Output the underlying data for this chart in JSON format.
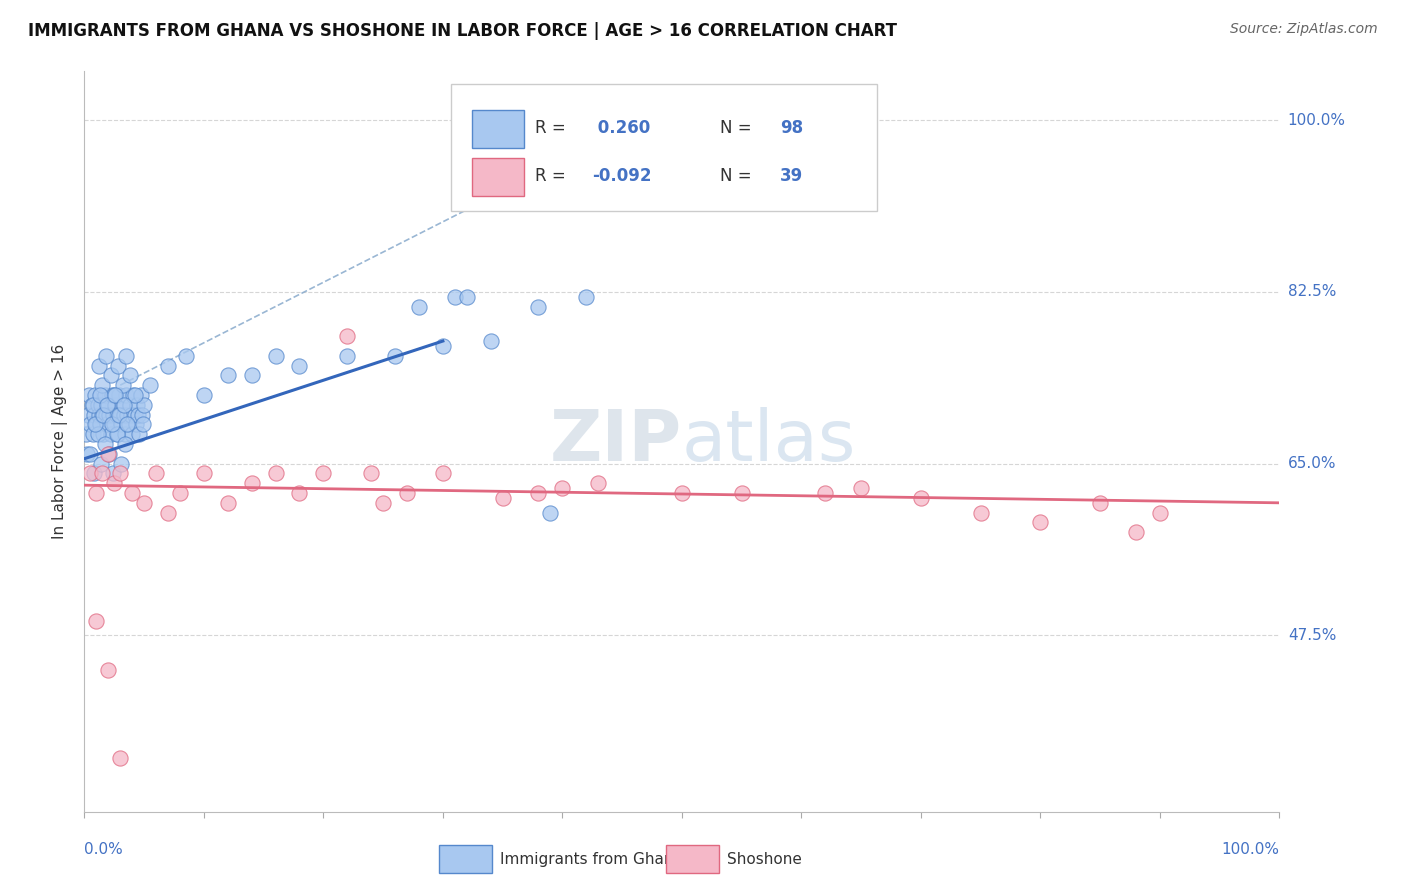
{
  "title": "IMMIGRANTS FROM GHANA VS SHOSHONE IN LABOR FORCE | AGE > 16 CORRELATION CHART",
  "source": "Source: ZipAtlas.com",
  "ylabel": "In Labor Force | Age > 16",
  "ylabel_ticks": [
    100.0,
    82.5,
    65.0,
    47.5
  ],
  "legend1_r": "0.260",
  "legend1_n": "98",
  "legend2_r": "-0.092",
  "legend2_n": "39",
  "legend_label1": "Immigrants from Ghana",
  "legend_label2": "Shoshone",
  "watermark_zip": "ZIP",
  "watermark_atlas": "atlas",
  "ghana_color": "#a8c8f0",
  "shoshone_color": "#f5b8c8",
  "ghana_edge_color": "#5588cc",
  "shoshone_edge_color": "#e06880",
  "ghana_line_color": "#3366bb",
  "shoshone_line_color": "#e06880",
  "ref_line_color": "#88aacc",
  "background_color": "#ffffff",
  "plot_bg_color": "#ffffff",
  "grid_color": "#cccccc",
  "tick_label_color": "#4472c4",
  "text_color": "#333333",
  "source_color": "#666666",
  "xmin": 0.0,
  "xmax": 1.0,
  "ymin": 0.295,
  "ymax": 1.05,
  "ghana_x": [
    0.001,
    0.002,
    0.003,
    0.004,
    0.005,
    0.006,
    0.007,
    0.008,
    0.009,
    0.01,
    0.011,
    0.012,
    0.013,
    0.014,
    0.015,
    0.016,
    0.017,
    0.018,
    0.019,
    0.02,
    0.021,
    0.022,
    0.023,
    0.024,
    0.025,
    0.026,
    0.027,
    0.028,
    0.029,
    0.03,
    0.031,
    0.032,
    0.033,
    0.034,
    0.035,
    0.036,
    0.037,
    0.038,
    0.039,
    0.04,
    0.041,
    0.042,
    0.043,
    0.044,
    0.045,
    0.046,
    0.047,
    0.048,
    0.049,
    0.05,
    0.012,
    0.015,
    0.018,
    0.022,
    0.025,
    0.028,
    0.032,
    0.035,
    0.038,
    0.042,
    0.005,
    0.008,
    0.011,
    0.014,
    0.017,
    0.021,
    0.024,
    0.027,
    0.031,
    0.034,
    0.007,
    0.009,
    0.013,
    0.016,
    0.019,
    0.023,
    0.026,
    0.029,
    0.033,
    0.036,
    0.055,
    0.07,
    0.085,
    0.1,
    0.12,
    0.14,
    0.16,
    0.18,
    0.22,
    0.26,
    0.3,
    0.34,
    0.39,
    0.31,
    0.28,
    0.32,
    0.38,
    0.42
  ],
  "ghana_y": [
    0.68,
    0.66,
    0.7,
    0.72,
    0.69,
    0.71,
    0.68,
    0.7,
    0.72,
    0.69,
    0.71,
    0.7,
    0.69,
    0.71,
    0.7,
    0.68,
    0.72,
    0.7,
    0.69,
    0.71,
    0.7,
    0.68,
    0.72,
    0.7,
    0.69,
    0.71,
    0.7,
    0.68,
    0.72,
    0.7,
    0.69,
    0.71,
    0.7,
    0.68,
    0.72,
    0.7,
    0.69,
    0.71,
    0.7,
    0.68,
    0.72,
    0.7,
    0.69,
    0.71,
    0.7,
    0.68,
    0.72,
    0.7,
    0.69,
    0.71,
    0.75,
    0.73,
    0.76,
    0.74,
    0.72,
    0.75,
    0.73,
    0.76,
    0.74,
    0.72,
    0.66,
    0.64,
    0.68,
    0.65,
    0.67,
    0.66,
    0.64,
    0.68,
    0.65,
    0.67,
    0.71,
    0.69,
    0.72,
    0.7,
    0.71,
    0.69,
    0.72,
    0.7,
    0.71,
    0.69,
    0.73,
    0.75,
    0.76,
    0.72,
    0.74,
    0.74,
    0.76,
    0.75,
    0.76,
    0.76,
    0.77,
    0.775,
    0.6,
    0.82,
    0.81,
    0.82,
    0.81,
    0.82
  ],
  "shoshone_x": [
    0.005,
    0.01,
    0.015,
    0.02,
    0.025,
    0.03,
    0.04,
    0.05,
    0.06,
    0.07,
    0.08,
    0.1,
    0.12,
    0.14,
    0.16,
    0.18,
    0.2,
    0.22,
    0.24,
    0.25,
    0.27,
    0.3,
    0.35,
    0.38,
    0.4,
    0.43,
    0.5,
    0.55,
    0.62,
    0.65,
    0.7,
    0.75,
    0.8,
    0.85,
    0.88,
    0.9,
    0.01,
    0.02,
    0.03
  ],
  "shoshone_y": [
    0.64,
    0.62,
    0.64,
    0.66,
    0.63,
    0.64,
    0.62,
    0.61,
    0.64,
    0.6,
    0.62,
    0.64,
    0.61,
    0.63,
    0.64,
    0.62,
    0.64,
    0.78,
    0.64,
    0.61,
    0.62,
    0.64,
    0.615,
    0.62,
    0.625,
    0.63,
    0.62,
    0.62,
    0.62,
    0.625,
    0.615,
    0.6,
    0.59,
    0.61,
    0.58,
    0.6,
    0.49,
    0.44,
    0.35
  ],
  "ghana_line_x": [
    0.0,
    0.3
  ],
  "ghana_line_y": [
    0.655,
    0.775
  ],
  "shoshone_line_x": [
    0.0,
    1.0
  ],
  "shoshone_line_y": [
    0.628,
    0.61
  ],
  "ref_line_x": [
    0.03,
    0.5
  ],
  "ref_line_y": [
    0.73,
    1.02
  ]
}
